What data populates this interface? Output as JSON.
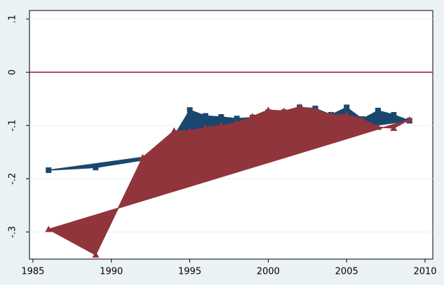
{
  "chart_data": {
    "type": "area",
    "series": [
      {
        "color": "#1a476f",
        "marker": "square",
        "x": [
          1986,
          1989,
          1992,
          1994,
          1995,
          1996,
          1997,
          1998,
          1999,
          2000,
          2001,
          2002,
          2003,
          2004,
          2005,
          2006,
          2007,
          2008,
          2009
        ],
        "values": [
          -0.184,
          -0.179,
          -0.165,
          -0.12,
          -0.071,
          -0.082,
          -0.084,
          -0.087,
          -0.085,
          -0.075,
          -0.075,
          -0.066,
          -0.068,
          -0.08,
          -0.066,
          -0.088,
          -0.072,
          -0.08,
          -0.091
        ]
      },
      {
        "color": "#90353b",
        "marker": "triangle",
        "x": [
          1986,
          1989,
          1992,
          1994,
          1995,
          1996,
          1997,
          1998,
          1999,
          2000,
          2001,
          2002,
          2003,
          2004,
          2005,
          2006,
          2007,
          2008,
          2009
        ],
        "values": [
          -0.295,
          -0.343,
          -0.16,
          -0.11,
          -0.11,
          -0.104,
          -0.1,
          -0.095,
          -0.083,
          -0.071,
          -0.073,
          -0.065,
          -0.07,
          -0.08,
          -0.08,
          -0.088,
          -0.103,
          -0.105,
          -0.089
        ]
      }
    ],
    "reference_line": {
      "value": 0,
      "color": "#a0162b"
    },
    "xlim": [
      1984.78,
      2010.49
    ],
    "xticks": [
      1985,
      1990,
      1995,
      2000,
      2005,
      2010
    ],
    "ylim": [
      -0.351,
      0.116
    ],
    "yticks": [
      {
        "value": 0.1,
        "label": ".1"
      },
      0,
      {
        "value": -0.1,
        "label": "-.1"
      },
      {
        "value": -0.2,
        "label": "-.2"
      },
      {
        "value": -0.3,
        "label": "-.3"
      }
    ],
    "grid": true
  }
}
